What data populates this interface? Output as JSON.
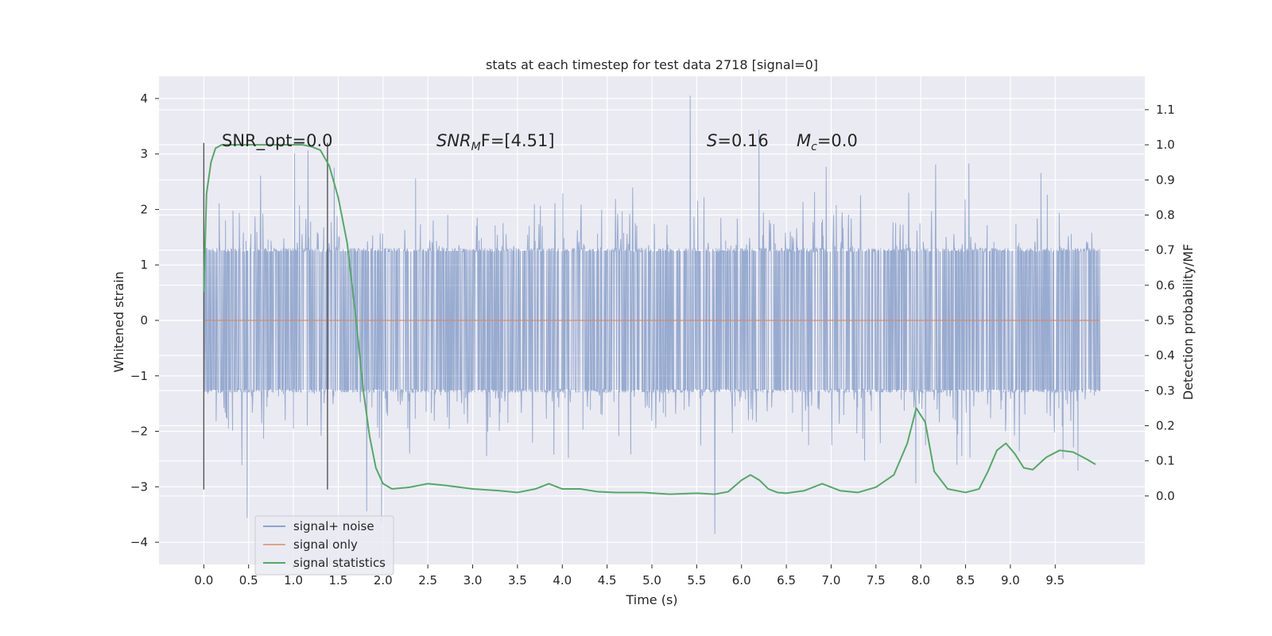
{
  "chart_data": {
    "type": "line",
    "title": "stats at each timestep for test data 2718 [signal=0]",
    "xlabel": "Time (s)",
    "ylabel_left": "Whitened strain",
    "ylabel_right": "Detection probability/MF",
    "xlim": [
      -0.5,
      10.5
    ],
    "ylim_left": [
      -4.4,
      4.4
    ],
    "ylim_right": [
      -0.195,
      1.195
    ],
    "x_ticks": [
      0.0,
      0.5,
      1.0,
      1.5,
      2.0,
      2.5,
      3.0,
      3.5,
      4.0,
      4.5,
      5.0,
      5.5,
      6.0,
      6.5,
      7.0,
      7.5,
      8.0,
      8.5,
      9.0,
      9.5
    ],
    "x_tick_labels": [
      "0.0",
      "0.5",
      "1.0",
      "1.5",
      "2.0",
      "2.5",
      "3.0",
      "3.5",
      "4.0",
      "4.5",
      "5.0",
      "5.5",
      "6.0",
      "6.5",
      "7.0",
      "7.5",
      "8.0",
      "8.5",
      "9.0",
      "9.5"
    ],
    "y_left_ticks": [
      4,
      3,
      2,
      1,
      0,
      -1,
      -2,
      -3,
      -4
    ],
    "y_left_tick_labels": [
      "4",
      "3",
      "2",
      "1",
      "0",
      "−1",
      "−2",
      "−3",
      "−4"
    ],
    "y_right_ticks": [
      1.1,
      1.0,
      0.9,
      0.8,
      0.7,
      0.6,
      0.5,
      0.4,
      0.3,
      0.2,
      0.1,
      0.0
    ],
    "y_right_tick_labels": [
      "1.1",
      "1.0",
      "0.9",
      "0.8",
      "0.7",
      "0.6",
      "0.5",
      "0.4",
      "0.3",
      "0.2",
      "0.1",
      "0.0"
    ],
    "grid": true,
    "legend_position": "lower-left",
    "annotations": {
      "snr_opt": "SNR_opt=0.0",
      "snr_mf_main": "SNR",
      "snr_mf_sub": "M",
      "snr_mf_rest": "F=[4.51]",
      "s_italic": "S",
      "s_rest": "=0.16",
      "mc_main": "M",
      "mc_sub": "c",
      "mc_rest": "=0.0"
    },
    "vertical_markers": [
      {
        "x": 0.0,
        "y_range": [
          -3.05,
          3.2
        ]
      },
      {
        "x": 1.38,
        "y_range": [
          -3.05,
          3.2
        ]
      }
    ],
    "series": [
      {
        "name": "signal+ noise",
        "color": "#4c72b0",
        "axis": "left",
        "x_range": [
          0.0,
          10.0
        ],
        "core_amplitude": 1.3,
        "max": 4.05,
        "min": -3.85
      },
      {
        "name": "signal only",
        "color": "#dd8452",
        "axis": "left",
        "x": [
          0.0,
          10.0
        ],
        "y": [
          0.0,
          0.0
        ]
      },
      {
        "name": "signal statistics",
        "color": "#55a868",
        "axis": "right",
        "x": [
          0.0,
          0.03,
          0.08,
          0.13,
          0.2,
          0.3,
          0.45,
          0.6,
          0.8,
          1.0,
          1.1,
          1.2,
          1.3,
          1.4,
          1.5,
          1.6,
          1.7,
          1.78,
          1.85,
          1.92,
          2.0,
          2.1,
          2.3,
          2.5,
          2.7,
          3.0,
          3.3,
          3.5,
          3.7,
          3.85,
          4.0,
          4.2,
          4.4,
          4.6,
          4.9,
          5.2,
          5.5,
          5.7,
          5.85,
          6.0,
          6.1,
          6.2,
          6.3,
          6.4,
          6.5,
          6.7,
          6.9,
          7.1,
          7.3,
          7.5,
          7.7,
          7.85,
          7.95,
          8.05,
          8.15,
          8.3,
          8.5,
          8.65,
          8.75,
          8.85,
          8.95,
          9.05,
          9.15,
          9.25,
          9.4,
          9.55,
          9.7,
          9.85,
          9.95
        ],
        "y": [
          0.58,
          0.86,
          0.95,
          0.99,
          1.0,
          1.0,
          1.0,
          1.0,
          1.0,
          1.0,
          1.0,
          0.995,
          0.985,
          0.94,
          0.85,
          0.72,
          0.5,
          0.3,
          0.17,
          0.08,
          0.035,
          0.02,
          0.025,
          0.035,
          0.03,
          0.02,
          0.015,
          0.01,
          0.02,
          0.035,
          0.02,
          0.02,
          0.012,
          0.01,
          0.01,
          0.005,
          0.008,
          0.005,
          0.012,
          0.045,
          0.06,
          0.045,
          0.02,
          0.01,
          0.008,
          0.015,
          0.035,
          0.015,
          0.01,
          0.025,
          0.06,
          0.15,
          0.25,
          0.21,
          0.07,
          0.02,
          0.01,
          0.02,
          0.07,
          0.13,
          0.15,
          0.12,
          0.08,
          0.075,
          0.11,
          0.13,
          0.125,
          0.105,
          0.09
        ]
      }
    ]
  }
}
